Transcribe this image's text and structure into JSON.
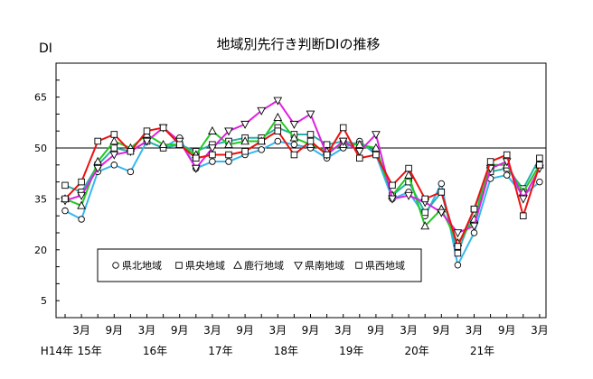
{
  "chart_data": {
    "type": "line",
    "title": "地域別先行き判断DIの推移",
    "ylabel": "DI",
    "ylim": [
      0,
      75
    ],
    "yticks": [
      5,
      20,
      35,
      50,
      65
    ],
    "reference_line": 50,
    "grid": false,
    "legend_position": "bottom-left",
    "x_labels": [
      {
        "i": 1,
        "label": "3月"
      },
      {
        "i": 3,
        "label": "9月"
      },
      {
        "i": 5,
        "label": "3月"
      },
      {
        "i": 7,
        "label": "9月"
      },
      {
        "i": 9,
        "label": "3月"
      },
      {
        "i": 11,
        "label": "9月"
      },
      {
        "i": 13,
        "label": "3月"
      },
      {
        "i": 15,
        "label": "9月"
      },
      {
        "i": 17,
        "label": "3月"
      },
      {
        "i": 19,
        "label": "9月"
      },
      {
        "i": 21,
        "label": "3月"
      },
      {
        "i": 23,
        "label": "9月"
      },
      {
        "i": 25,
        "label": "3月"
      },
      {
        "i": 27,
        "label": "9月"
      },
      {
        "i": 29,
        "label": "3月"
      }
    ],
    "year_labels": [
      {
        "i": -0.5,
        "label": "H14年"
      },
      {
        "i": 1.5,
        "label": "15年"
      },
      {
        "i": 5.5,
        "label": "16年"
      },
      {
        "i": 9.5,
        "label": "17年"
      },
      {
        "i": 13.5,
        "label": "18年"
      },
      {
        "i": 17.5,
        "label": "19年"
      },
      {
        "i": 21.5,
        "label": "20年"
      },
      {
        "i": 25.5,
        "label": "21年"
      }
    ],
    "series": [
      {
        "name": "県北地域",
        "color": "#35b8f0",
        "marker": "circle",
        "values": [
          31.5,
          29,
          43,
          45,
          43,
          52,
          50,
          53,
          44,
          46,
          46,
          48,
          49.5,
          52,
          51,
          50,
          47,
          50,
          52,
          48,
          35,
          37,
          30,
          39.5,
          15.5,
          25,
          41,
          42,
          36,
          40
        ]
      },
      {
        "name": "県央地域",
        "color": "#2ab0a8",
        "marker": "square",
        "values": [
          39,
          37,
          45,
          50,
          49,
          52,
          50,
          51,
          49,
          51,
          52,
          53,
          53,
          56,
          54,
          54,
          51,
          52,
          51,
          49,
          36,
          40,
          31,
          37,
          19,
          32,
          43,
          44,
          38,
          47
        ]
      },
      {
        "name": "鹿行地域",
        "color": "#22c822",
        "marker": "triangle-up",
        "values": [
          35,
          33,
          46,
          52,
          50,
          54,
          51,
          51,
          48,
          55,
          51,
          52,
          52,
          59,
          53,
          51,
          49,
          51,
          51,
          50,
          36,
          42,
          27,
          32,
          22,
          29,
          45,
          45,
          37,
          45
        ]
      },
      {
        "name": "県南地域",
        "color": "#e020e0",
        "marker": "triangle-down",
        "values": [
          34.5,
          36,
          44,
          48,
          49,
          52,
          56,
          52,
          44,
          50,
          55,
          57,
          61,
          64,
          57,
          60,
          48,
          52,
          49,
          54,
          35,
          36,
          34,
          31,
          25,
          27,
          44,
          46,
          35,
          44
        ]
      },
      {
        "name": "県西地域",
        "color": "#ee1111",
        "marker": "square",
        "values": [
          35,
          40,
          52,
          54,
          49,
          55,
          56,
          51,
          47,
          48,
          48,
          49,
          52,
          55,
          48,
          52,
          48,
          56,
          47,
          48,
          39,
          44,
          35,
          37,
          21,
          32,
          46,
          48,
          30,
          45
        ]
      }
    ]
  }
}
